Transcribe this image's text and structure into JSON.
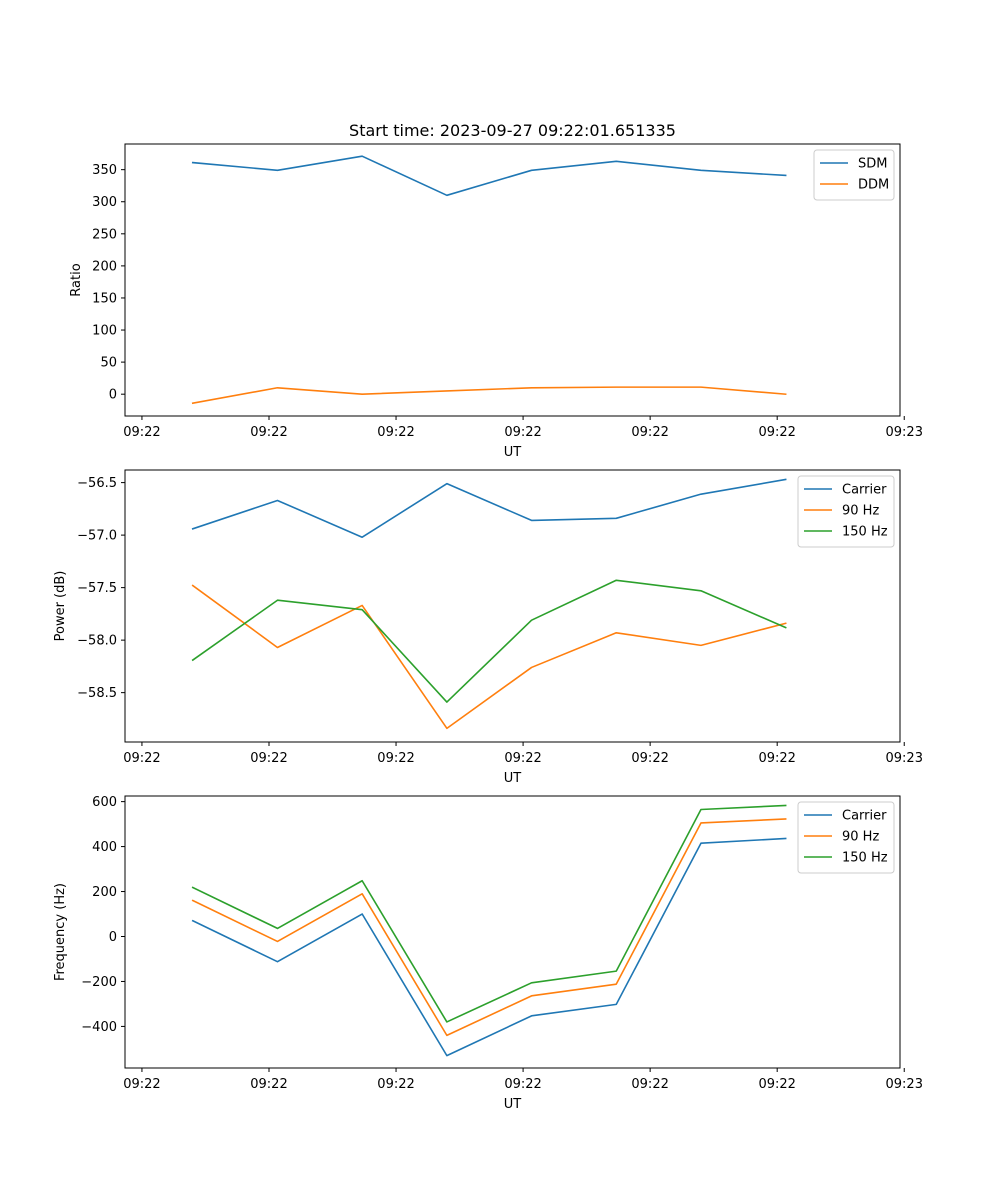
{
  "title": "Start time: 2023-09-27 09:22:01.651335",
  "colors": {
    "c0": "#1f77b4",
    "c1": "#ff7f0e",
    "c2": "#2ca02c"
  },
  "chart_data": [
    {
      "type": "line",
      "title": "Start time: 2023-09-27 09:22:01.651335",
      "xlabel": "UT",
      "ylabel": "Ratio",
      "x": [
        1,
        2,
        3,
        4,
        5,
        6,
        7,
        8
      ],
      "xlim": [
        0.2,
        9.35
      ],
      "xticks": [
        0.4,
        1.9,
        3.4,
        4.9,
        6.4,
        7.9,
        9.4
      ],
      "xticklabels": [
        "09:22",
        "09:22",
        "09:22",
        "09:22",
        "09:22",
        "09:22",
        "09:23"
      ],
      "ylim": [
        -34,
        390
      ],
      "yticks": [
        0,
        50,
        100,
        150,
        200,
        250,
        300,
        350
      ],
      "yticklabels": [
        "0",
        "50",
        "100",
        "150",
        "200",
        "250",
        "300",
        "350"
      ],
      "legend_position": "top-right",
      "series": [
        {
          "name": "SDM",
          "color": "#1f77b4",
          "values": [
            361,
            349,
            371,
            310,
            349,
            363,
            349,
            341
          ]
        },
        {
          "name": "DDM",
          "color": "#ff7f0e",
          "values": [
            -14,
            10,
            0,
            5,
            10,
            11,
            11,
            0
          ]
        }
      ]
    },
    {
      "type": "line",
      "title": "",
      "xlabel": "UT",
      "ylabel": "Power (dB)",
      "x": [
        1,
        2,
        3,
        4,
        5,
        6,
        7,
        8
      ],
      "xlim": [
        0.2,
        9.35
      ],
      "xticks": [
        0.4,
        1.9,
        3.4,
        4.9,
        6.4,
        7.9,
        9.4
      ],
      "xticklabels": [
        "09:22",
        "09:22",
        "09:22",
        "09:22",
        "09:22",
        "09:22",
        "09:23"
      ],
      "ylim": [
        -58.97,
        -56.38
      ],
      "yticks": [
        -56.5,
        -57.0,
        -57.5,
        -58.0,
        -58.5
      ],
      "yticklabels": [
        "−56.5",
        "−57.0",
        "−57.5",
        "−58.0",
        "−58.5"
      ],
      "legend_position": "top-right",
      "series": [
        {
          "name": "Carrier",
          "color": "#1f77b4",
          "values": [
            -56.94,
            -56.67,
            -57.02,
            -56.51,
            -56.86,
            -56.84,
            -56.61,
            -56.47
          ]
        },
        {
          "name": "90 Hz",
          "color": "#ff7f0e",
          "values": [
            -57.48,
            -58.07,
            -57.67,
            -58.84,
            -58.26,
            -57.93,
            -58.05,
            -57.84
          ]
        },
        {
          "name": "150 Hz",
          "color": "#2ca02c",
          "values": [
            -58.19,
            -57.62,
            -57.71,
            -58.59,
            -57.81,
            -57.43,
            -57.53,
            -57.88
          ]
        }
      ]
    },
    {
      "type": "line",
      "title": "",
      "xlabel": "UT",
      "ylabel": "Frequency (Hz)",
      "x": [
        1,
        2,
        3,
        4,
        5,
        6,
        7,
        8
      ],
      "xlim": [
        0.2,
        9.35
      ],
      "xticks": [
        0.4,
        1.9,
        3.4,
        4.9,
        6.4,
        7.9,
        9.4
      ],
      "xticklabels": [
        "09:22",
        "09:22",
        "09:22",
        "09:22",
        "09:22",
        "09:22",
        "09:23"
      ],
      "ylim": [
        -585,
        625
      ],
      "yticks": [
        -400,
        -200,
        0,
        200,
        400,
        600
      ],
      "yticklabels": [
        "−400",
        "−200",
        "0",
        "200",
        "400",
        "600"
      ],
      "legend_position": "top-right",
      "series": [
        {
          "name": "Carrier",
          "color": "#1f77b4",
          "values": [
            70,
            -112,
            100,
            -530,
            -353,
            -302,
            415,
            436
          ]
        },
        {
          "name": "90 Hz",
          "color": "#ff7f0e",
          "values": [
            160,
            -22,
            190,
            -440,
            -264,
            -212,
            505,
            523
          ]
        },
        {
          "name": "150 Hz",
          "color": "#2ca02c",
          "values": [
            218,
            36,
            248,
            -380,
            -206,
            -154,
            565,
            583
          ]
        }
      ]
    }
  ]
}
